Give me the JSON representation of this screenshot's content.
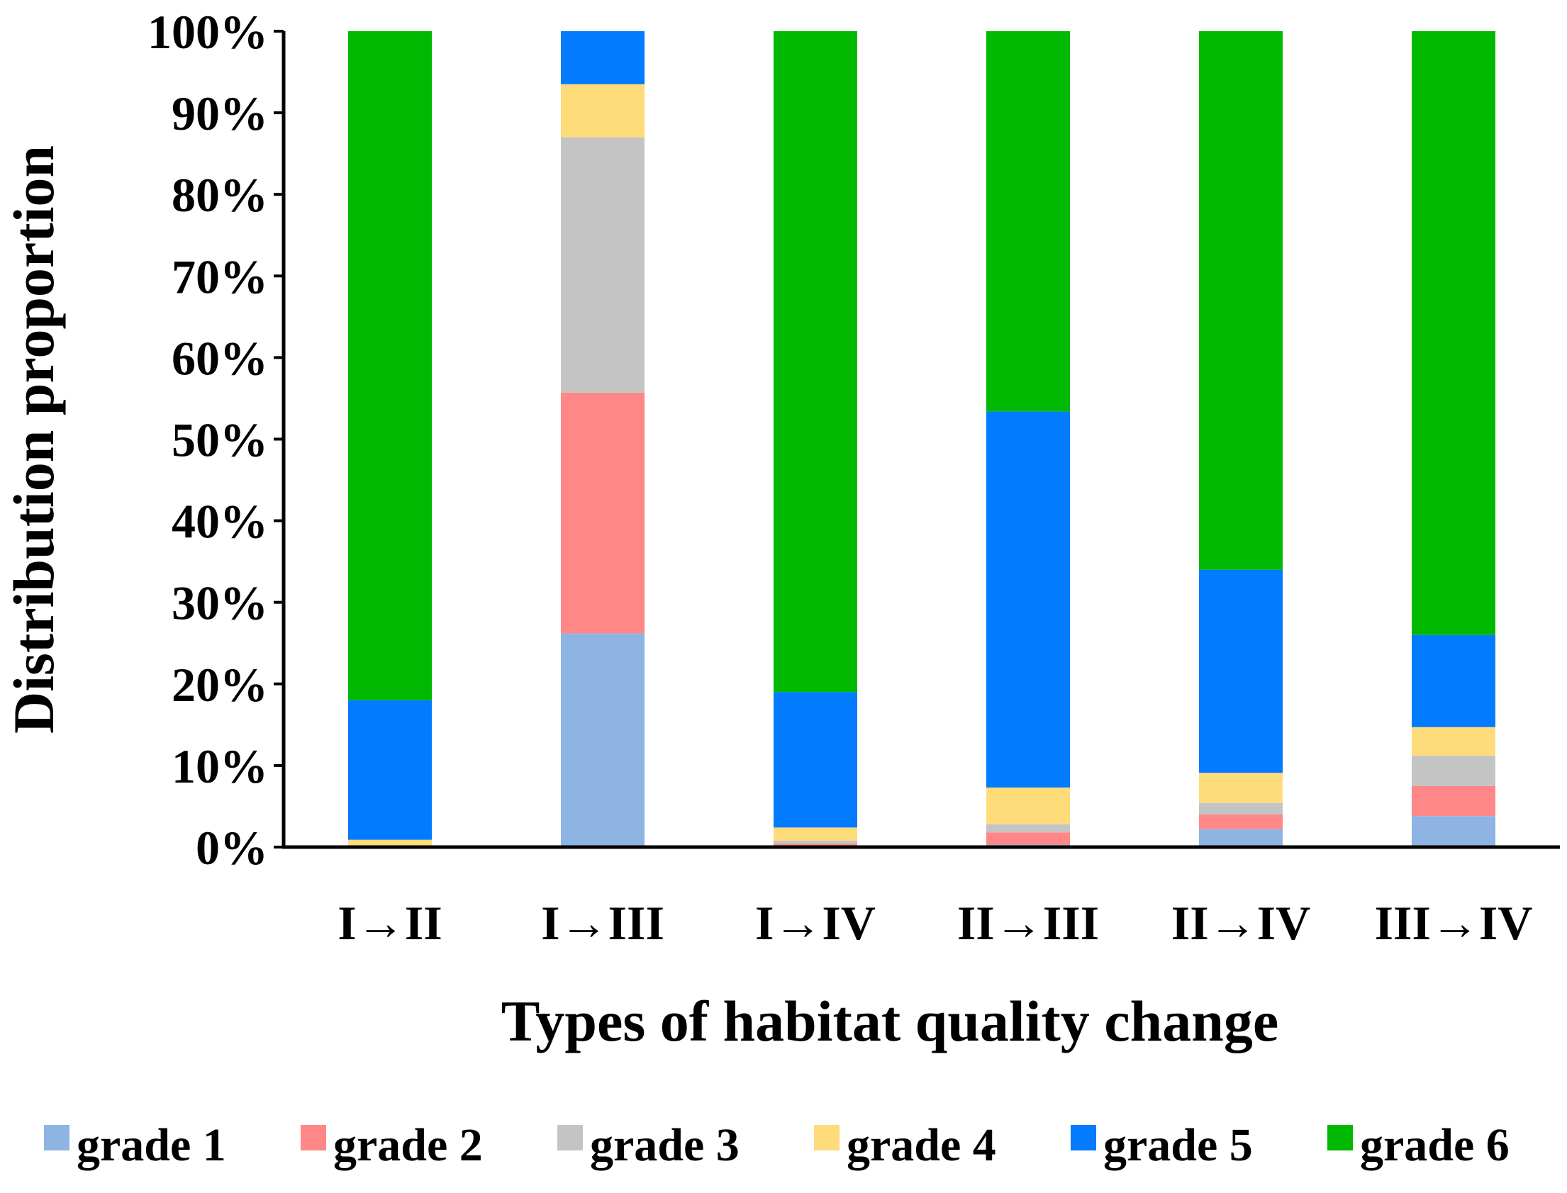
{
  "chart_data": {
    "type": "bar",
    "stacked": true,
    "title": "",
    "xlabel": "Types of habitat quality change",
    "ylabel": "Distribution proportion",
    "ylim": [
      0,
      100
    ],
    "y_ticks": [
      "0%",
      "10%",
      "20%",
      "30%",
      "40%",
      "50%",
      "60%",
      "70%",
      "80%",
      "90%",
      "100%"
    ],
    "categories": [
      "I→II",
      "I→III",
      "I→IV",
      "II→III",
      "II→IV",
      "III→IV"
    ],
    "legend_position": "bottom",
    "series": [
      {
        "name": "grade 1",
        "color": "#8DB4E2",
        "values": [
          0,
          26.2,
          0.2,
          0.3,
          2.2,
          3.8
        ]
      },
      {
        "name": "grade 2",
        "color": "#FF8787",
        "values": [
          0,
          29.5,
          0.2,
          1.5,
          1.8,
          3.7
        ]
      },
      {
        "name": "grade 3",
        "color": "#C4C4C4",
        "values": [
          0,
          31.3,
          0.4,
          1.0,
          1.4,
          3.7
        ]
      },
      {
        "name": "grade 4",
        "color": "#FFDC7A",
        "values": [
          0.9,
          6.5,
          1.6,
          4.5,
          3.7,
          3.5
        ]
      },
      {
        "name": "grade 5",
        "color": "#037BFF",
        "values": [
          17.1,
          6.5,
          16.6,
          46.1,
          24.9,
          11.3
        ]
      },
      {
        "name": "grade 6",
        "color": "#00B900",
        "values": [
          82.0,
          0,
          81.0,
          46.6,
          66.0,
          74.0
        ]
      }
    ]
  }
}
